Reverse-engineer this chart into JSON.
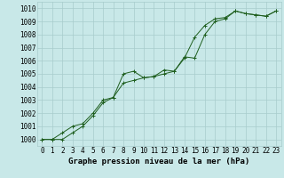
{
  "xlabel": "Graphe pression niveau de la mer (hPa)",
  "background_color": "#c8e8e8",
  "line_color": "#1e5e1e",
  "grid_color": "#a8cccc",
  "xlim": [
    -0.5,
    23.5
  ],
  "ylim": [
    999.5,
    1010.5
  ],
  "yticks": [
    1000,
    1001,
    1002,
    1003,
    1004,
    1005,
    1006,
    1007,
    1008,
    1009,
    1010
  ],
  "xticks": [
    0,
    1,
    2,
    3,
    4,
    5,
    6,
    7,
    8,
    9,
    10,
    11,
    12,
    13,
    14,
    15,
    16,
    17,
    18,
    19,
    20,
    21,
    22,
    23
  ],
  "series1_x": [
    0,
    1,
    2,
    3,
    4,
    5,
    6,
    7,
    8,
    9,
    10,
    11,
    12,
    13,
    14,
    15,
    16,
    17,
    18,
    19,
    20,
    21,
    22,
    23
  ],
  "series1_y": [
    1000.0,
    1000.0,
    1000.0,
    1000.5,
    1001.0,
    1001.8,
    1002.8,
    1003.2,
    1005.0,
    1005.2,
    1004.7,
    1004.8,
    1005.3,
    1005.2,
    1006.2,
    1007.8,
    1008.7,
    1009.2,
    1009.3,
    1009.8,
    1009.6,
    1009.5,
    1009.4,
    1009.8
  ],
  "series2_x": [
    0,
    1,
    2,
    3,
    4,
    5,
    6,
    7,
    8,
    9,
    10,
    11,
    12,
    13,
    14,
    15,
    16,
    17,
    18,
    19,
    20,
    21,
    22,
    23
  ],
  "series2_y": [
    1000.0,
    1000.0,
    1000.5,
    1001.0,
    1001.2,
    1002.0,
    1003.0,
    1003.2,
    1004.3,
    1004.5,
    1004.7,
    1004.8,
    1005.0,
    1005.2,
    1006.3,
    1006.2,
    1008.0,
    1009.0,
    1009.2,
    1009.8,
    1009.6,
    1009.5,
    1009.4,
    1009.8
  ],
  "tick_fontsize": 5.5,
  "xlabel_fontsize": 6.5
}
